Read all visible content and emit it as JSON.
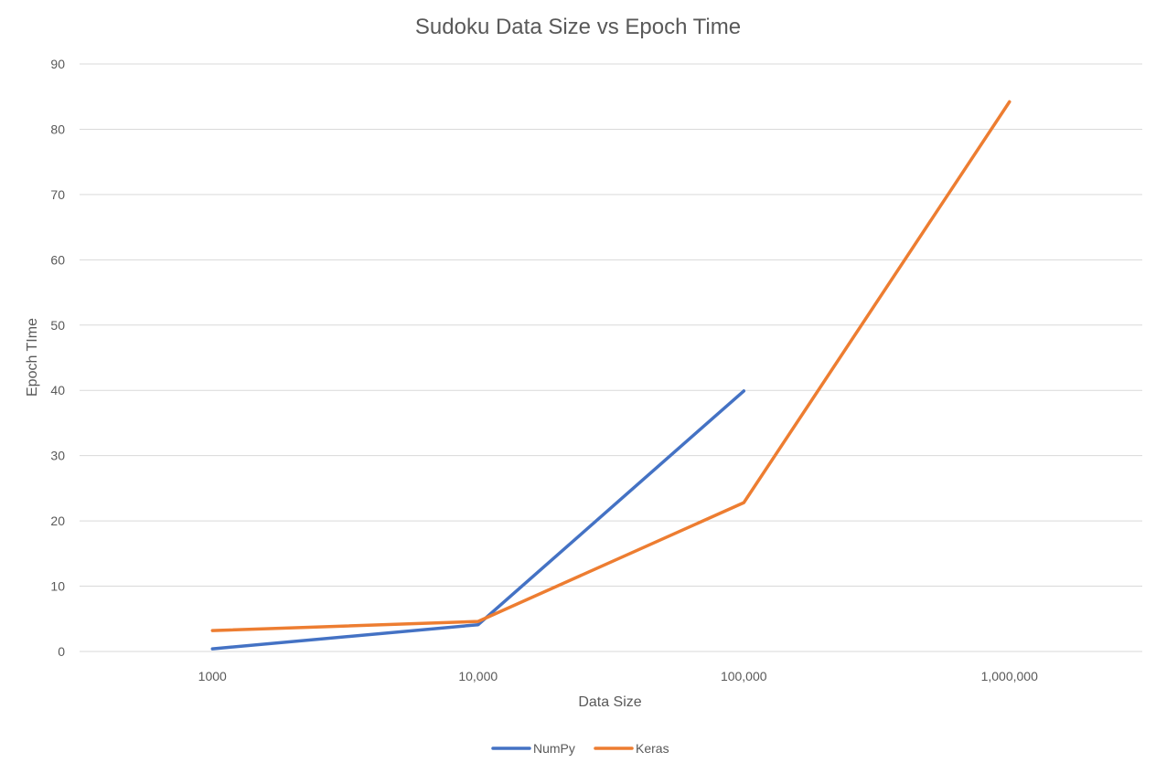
{
  "chart_data": {
    "type": "line",
    "title": "Sudoku Data Size vs Epoch Time",
    "xlabel": "Data Size",
    "ylabel": "Epoch TIme",
    "categories": [
      "1000",
      "10,000",
      "100,000",
      "1,000,000"
    ],
    "ylim": [
      0,
      90
    ],
    "yticks": [
      0,
      10,
      20,
      30,
      40,
      50,
      60,
      70,
      80,
      90
    ],
    "grid": true,
    "legend_position": "bottom",
    "series": [
      {
        "name": "NumPy",
        "color": "#4472c4",
        "values": [
          0.4,
          4.1,
          39.9,
          null
        ]
      },
      {
        "name": "Keras",
        "color": "#ed7d31",
        "values": [
          3.2,
          4.6,
          22.8,
          84.2
        ]
      }
    ]
  }
}
